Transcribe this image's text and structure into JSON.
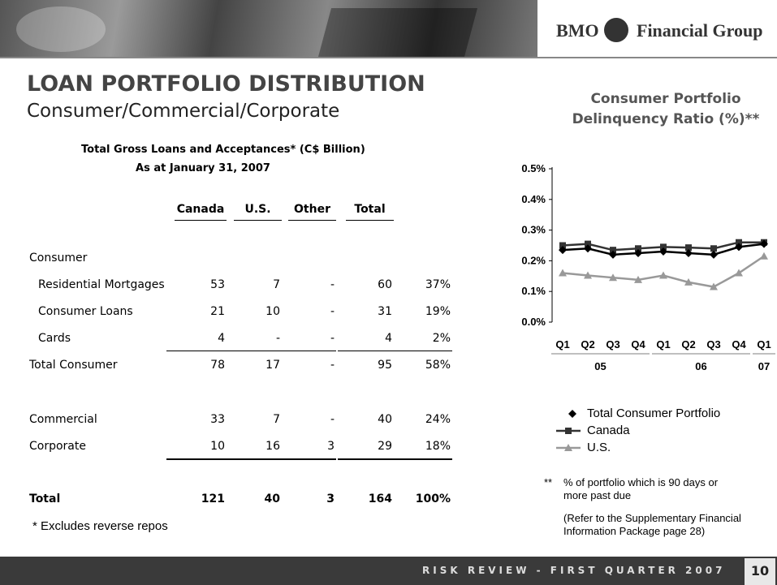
{
  "header": {
    "logo_left": "BMO",
    "logo_right": "Financial Group"
  },
  "title": "LOAN PORTFOLIO DISTRIBUTION",
  "subtitle": "Consumer/Commercial/Corporate",
  "table": {
    "caption": [
      "Total Gross Loans and Acceptances* (C$ Billion)",
      "As at January 31, 2007"
    ],
    "columns": [
      "Canada",
      "U.S.",
      "Other",
      "Total"
    ],
    "rows": [
      [
        "Consumer"
      ],
      [
        "Residential Mortgages",
        53,
        7,
        "-",
        60,
        "37%"
      ],
      [
        "Consumer Loans",
        21,
        10,
        "-",
        31,
        "19%"
      ],
      [
        "Cards",
        4,
        "-",
        "-",
        4,
        "2%"
      ],
      [
        "Total Consumer",
        78,
        17,
        "-",
        95,
        "58%"
      ],
      [
        "Commercial",
        33,
        7,
        "-",
        40,
        "24%"
      ],
      [
        "Corporate",
        10,
        16,
        3,
        29,
        "18%"
      ],
      [
        "Total",
        121,
        40,
        3,
        164,
        "100%"
      ]
    ]
  },
  "footnote": "* Excludes reverse repos",
  "chart_data": {
    "type": "line",
    "title": "Consumer Portfolio Delinquency Ratio (%)**",
    "categories": [
      "Q1",
      "Q2",
      "Q3",
      "Q4",
      "Q1",
      "Q2",
      "Q3",
      "Q4",
      "Q1"
    ],
    "groups": [
      {
        "label": "05",
        "size": 4
      },
      {
        "label": "06",
        "size": 4
      },
      {
        "label": "07",
        "size": 1
      }
    ],
    "ylim": [
      0,
      0.5
    ],
    "yticks": [
      {
        "value": 0,
        "label": "0.0%"
      },
      {
        "value": 0.1,
        "label": "0.1%"
      },
      {
        "value": 0.2,
        "label": "0.2%"
      },
      {
        "value": 0.3,
        "label": "0.3%"
      },
      {
        "value": 0.4,
        "label": "0.4%"
      },
      {
        "value": 0.5,
        "label": "0.5%"
      }
    ],
    "series": [
      {
        "name": "Total Consumer Portfolio",
        "color": "#000000",
        "marker": "diamond",
        "values": [
          0.235,
          0.24,
          0.22,
          0.225,
          0.23,
          0.225,
          0.22,
          0.245,
          0.255
        ]
      },
      {
        "name": "Canada",
        "color": "#333333",
        "marker": "square",
        "values": [
          0.25,
          0.255,
          0.235,
          0.24,
          0.245,
          0.243,
          0.24,
          0.26,
          0.26
        ]
      },
      {
        "name": "U.S.",
        "color": "#999999",
        "marker": "triangle",
        "values": [
          0.16,
          0.152,
          0.145,
          0.138,
          0.152,
          0.13,
          0.115,
          0.16,
          0.215
        ]
      }
    ]
  },
  "notes": {
    "marker": "**",
    "text": "% of portfolio which is 90 days or more past due",
    "reference": "(Refer to the Supplementary Financial Information Package page 28)"
  },
  "footer": {
    "text": "RISK REVIEW - FIRST QUARTER 2007",
    "page": 10
  }
}
